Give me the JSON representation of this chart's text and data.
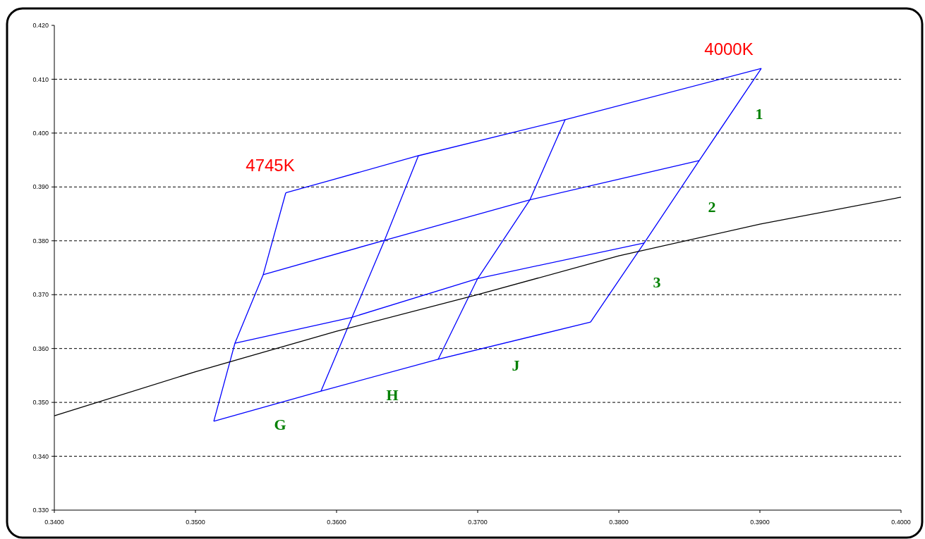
{
  "chart_data": {
    "type": "line",
    "xlim": [
      0.34,
      0.4
    ],
    "ylim": [
      0.33,
      0.42
    ],
    "xticks": [
      {
        "value": 0.34,
        "label": "0.3400"
      },
      {
        "value": 0.35,
        "label": "0.3500"
      },
      {
        "value": 0.36,
        "label": "0.3600"
      },
      {
        "value": 0.37,
        "label": "0.3700"
      },
      {
        "value": 0.38,
        "label": "0.3800"
      },
      {
        "value": 0.39,
        "label": "0.3900"
      },
      {
        "value": 0.4,
        "label": "0.4000"
      }
    ],
    "yticks": [
      {
        "value": 0.33,
        "label": "0.330"
      },
      {
        "value": 0.34,
        "label": "0.340"
      },
      {
        "value": 0.35,
        "label": "0.350"
      },
      {
        "value": 0.36,
        "label": "0.360"
      },
      {
        "value": 0.37,
        "label": "0.370"
      },
      {
        "value": 0.38,
        "label": "0.380"
      },
      {
        "value": 0.39,
        "label": "0.390"
      },
      {
        "value": 0.4,
        "label": "0.400"
      },
      {
        "value": 0.41,
        "label": "0.410"
      },
      {
        "value": 0.42,
        "label": "0.420"
      }
    ],
    "grid": "y",
    "marker": "none",
    "line_style": "solid",
    "series": [
      {
        "color": "#0000ff",
        "x": [
          0.3564,
          0.3658,
          0.3762,
          0.3901
        ],
        "values": [
          0.3889,
          0.3958,
          0.4025,
          0.412
        ]
      },
      {
        "color": "#0000ff",
        "x": [
          0.3548,
          0.3634,
          0.3737,
          0.3857
        ],
        "values": [
          0.3737,
          0.3801,
          0.3876,
          0.3949
        ]
      },
      {
        "color": "#0000ff",
        "x": [
          0.3528,
          0.3611,
          0.37,
          0.3818
        ],
        "values": [
          0.361,
          0.3658,
          0.373,
          0.3796
        ]
      },
      {
        "color": "#0000ff",
        "x": [
          0.3513,
          0.3589,
          0.3672,
          0.378
        ],
        "values": [
          0.3465,
          0.3521,
          0.358,
          0.3649
        ]
      },
      {
        "color": "#0000ff",
        "x": [
          0.3564,
          0.3548,
          0.3528,
          0.3513
        ],
        "values": [
          0.3889,
          0.3737,
          0.361,
          0.3465
        ]
      },
      {
        "color": "#0000ff",
        "x": [
          0.3658,
          0.3634,
          0.3611,
          0.3589
        ],
        "values": [
          0.3958,
          0.3801,
          0.3658,
          0.3521
        ]
      },
      {
        "color": "#0000ff",
        "x": [
          0.3762,
          0.3737,
          0.37,
          0.3672
        ],
        "values": [
          0.4025,
          0.3876,
          0.373,
          0.358
        ]
      },
      {
        "color": "#0000ff",
        "x": [
          0.3901,
          0.3857,
          0.3818,
          0.378
        ],
        "values": [
          0.412,
          0.3949,
          0.3796,
          0.3649
        ]
      },
      {
        "color": "#000000",
        "x": [
          0.34,
          0.35,
          0.36,
          0.37,
          0.38,
          0.39,
          0.4
        ],
        "values": [
          0.3475,
          0.3557,
          0.3632,
          0.37,
          0.3772,
          0.3831,
          0.3881
        ]
      }
    ],
    "annotations": [
      "4000K",
      "4745K",
      "1",
      "2",
      "3",
      "J",
      "H",
      "G"
    ]
  }
}
